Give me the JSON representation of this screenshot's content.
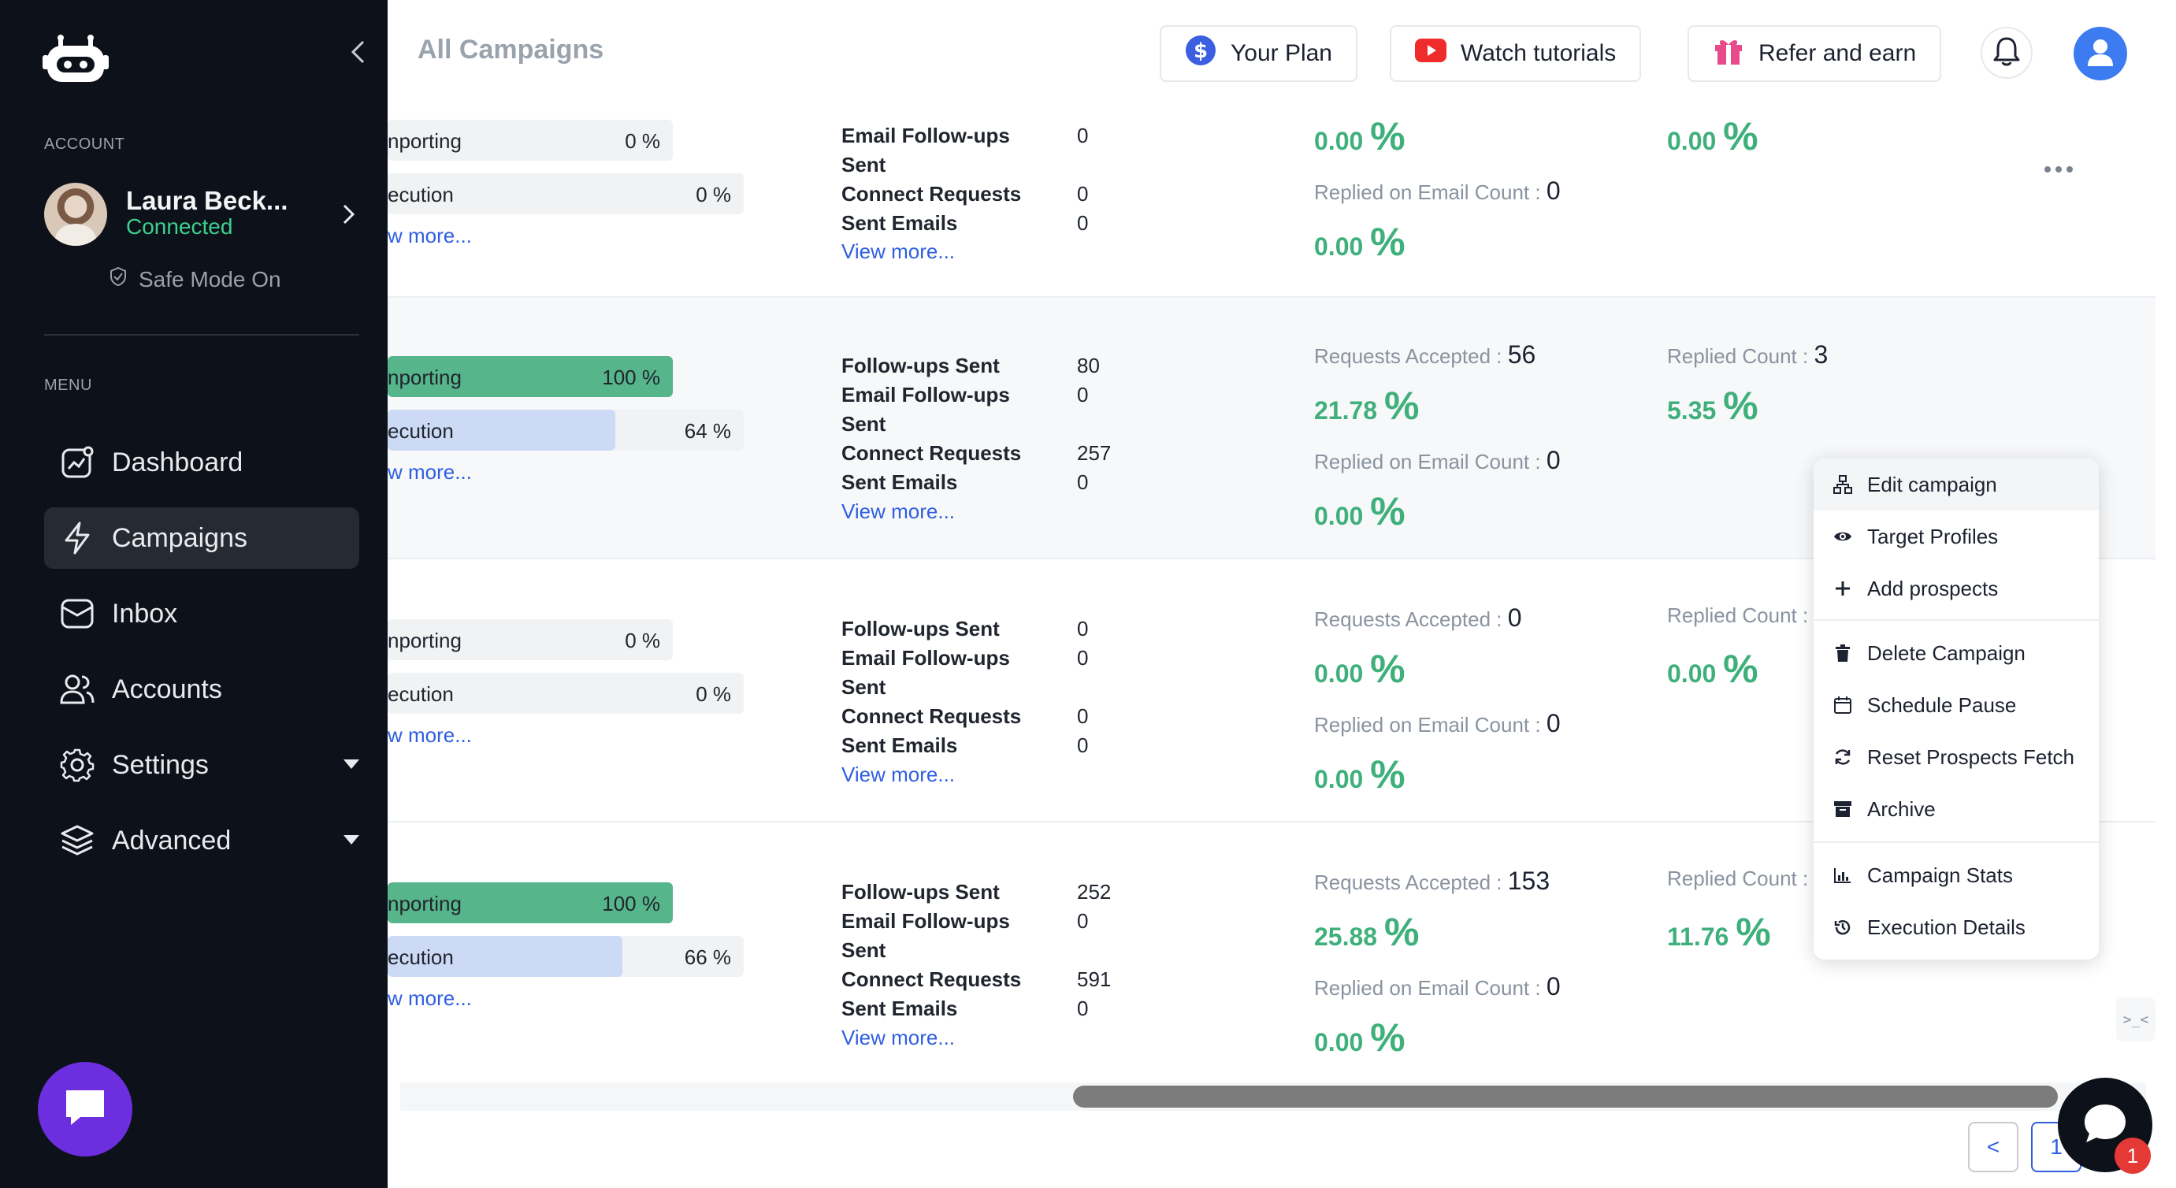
{
  "colors": {
    "sidebar_bg": "#0d111a",
    "accent_green": "#3fb07b",
    "progress_green": "#56b58b",
    "progress_blue": "#cddaf6",
    "link_blue": "#2f5fe0",
    "chat_purple": "#6d2ee0"
  },
  "sidebar": {
    "logo_icon": "robot-logo-icon",
    "account_label": "ACCOUNT",
    "account": {
      "name": "Laura Beck...",
      "status": "Connected"
    },
    "safe_mode": "Safe Mode On",
    "menu_label": "MENU",
    "items": [
      {
        "label": "Dashboard",
        "icon": "dashboard-icon"
      },
      {
        "label": "Campaigns",
        "icon": "bolt-icon",
        "active": true
      },
      {
        "label": "Inbox",
        "icon": "inbox-icon"
      },
      {
        "label": "Accounts",
        "icon": "users-icon"
      },
      {
        "label": "Settings",
        "icon": "gear-icon",
        "expandable": true
      },
      {
        "label": "Advanced",
        "icon": "layers-icon",
        "expandable": true
      }
    ]
  },
  "header": {
    "title": "All Campaigns",
    "your_plan": "Your Plan",
    "watch_tutorials": "Watch tutorials",
    "refer_and_earn": "Refer and earn"
  },
  "rows": [
    {
      "importing_label": "nporting",
      "importing_pct": "0 %",
      "importing_value": 0,
      "execution_label": "ecution",
      "execution_pct": "0 %",
      "execution_value": 0,
      "view_more_left": "w more...",
      "stats": [
        {
          "label": "Email Follow-ups",
          "value": "0"
        },
        {
          "label": "Sent",
          "value": ""
        },
        {
          "label": "Connect Requests",
          "value": "0"
        },
        {
          "label": "Sent Emails",
          "value": "0"
        }
      ],
      "view_more": "View more...",
      "pct_a": "0.00",
      "replied_email_label": "Replied on Email Count :",
      "replied_email_count": "0",
      "pct_b": "0.00",
      "pct_c": "0.00"
    },
    {
      "importing_label": "nporting",
      "importing_pct": "100 %",
      "importing_value": 100,
      "execution_label": "ecution",
      "execution_pct": "64 %",
      "execution_value": 64,
      "view_more_left": "w more...",
      "stats": [
        {
          "label": "Follow-ups Sent",
          "value": "80"
        },
        {
          "label": "Email Follow-ups",
          "value": "0"
        },
        {
          "label": "Sent",
          "value": ""
        },
        {
          "label": "Connect Requests",
          "value": "257"
        },
        {
          "label": "Sent Emails",
          "value": "0"
        }
      ],
      "view_more": "View more...",
      "accepted_label": "Requests Accepted :",
      "accepted_count": "56",
      "pct_a": "21.78",
      "replied_email_label": "Replied on Email Count :",
      "replied_email_count": "0",
      "pct_b": "0.00",
      "replied_label": "Replied Count :",
      "replied_count": "3",
      "pct_c": "5.35"
    },
    {
      "importing_label": "nporting",
      "importing_pct": "0 %",
      "importing_value": 0,
      "execution_label": "ecution",
      "execution_pct": "0 %",
      "execution_value": 0,
      "view_more_left": "w more...",
      "stats": [
        {
          "label": "Follow-ups Sent",
          "value": "0"
        },
        {
          "label": "Email Follow-ups",
          "value": "0"
        },
        {
          "label": "Sent",
          "value": ""
        },
        {
          "label": "Connect Requests",
          "value": "0"
        },
        {
          "label": "Sent Emails",
          "value": "0"
        }
      ],
      "view_more": "View more...",
      "accepted_label": "Requests Accepted :",
      "accepted_count": "0",
      "pct_a": "0.00",
      "replied_email_label": "Replied on Email Count :",
      "replied_email_count": "0",
      "pct_b": "0.00",
      "replied_label": "Replied Count :",
      "pct_c": "0.00"
    },
    {
      "importing_label": "nporting",
      "importing_pct": "100 %",
      "importing_value": 100,
      "execution_label": "ecution",
      "execution_pct": "66 %",
      "execution_value": 66,
      "view_more_left": "w more...",
      "stats": [
        {
          "label": "Follow-ups Sent",
          "value": "252"
        },
        {
          "label": "Email Follow-ups",
          "value": "0"
        },
        {
          "label": "Sent",
          "value": ""
        },
        {
          "label": "Connect Requests",
          "value": "591"
        },
        {
          "label": "Sent Emails",
          "value": "0"
        }
      ],
      "view_more": "View more...",
      "accepted_label": "Requests Accepted :",
      "accepted_count": "153",
      "pct_a": "25.88",
      "replied_email_label": "Replied on Email Count :",
      "replied_email_count": "0",
      "pct_b": "0.00",
      "replied_label": "Replied Count :",
      "pct_c": "11.76"
    }
  ],
  "percent_sign": "%",
  "dropdown": {
    "items": [
      {
        "label": "Edit campaign",
        "icon": "sitemap-icon"
      },
      {
        "label": "Target Profiles",
        "icon": "eye-icon"
      },
      {
        "label": "Add prospects",
        "icon": "plus-icon"
      },
      {
        "label": "Delete Campaign",
        "icon": "trash-icon"
      },
      {
        "label": "Schedule Pause",
        "icon": "calendar-icon"
      },
      {
        "label": "Reset Prospects Fetch",
        "icon": "refresh-icon"
      },
      {
        "label": "Archive",
        "icon": "archive-icon"
      },
      {
        "label": "Campaign Stats",
        "icon": "bar-chart-icon"
      },
      {
        "label": "Execution Details",
        "icon": "history-icon"
      }
    ]
  },
  "pagination": {
    "prev": "<",
    "current": "1"
  },
  "notifications": {
    "badge": "1"
  },
  "dev_toggle": ">_<"
}
